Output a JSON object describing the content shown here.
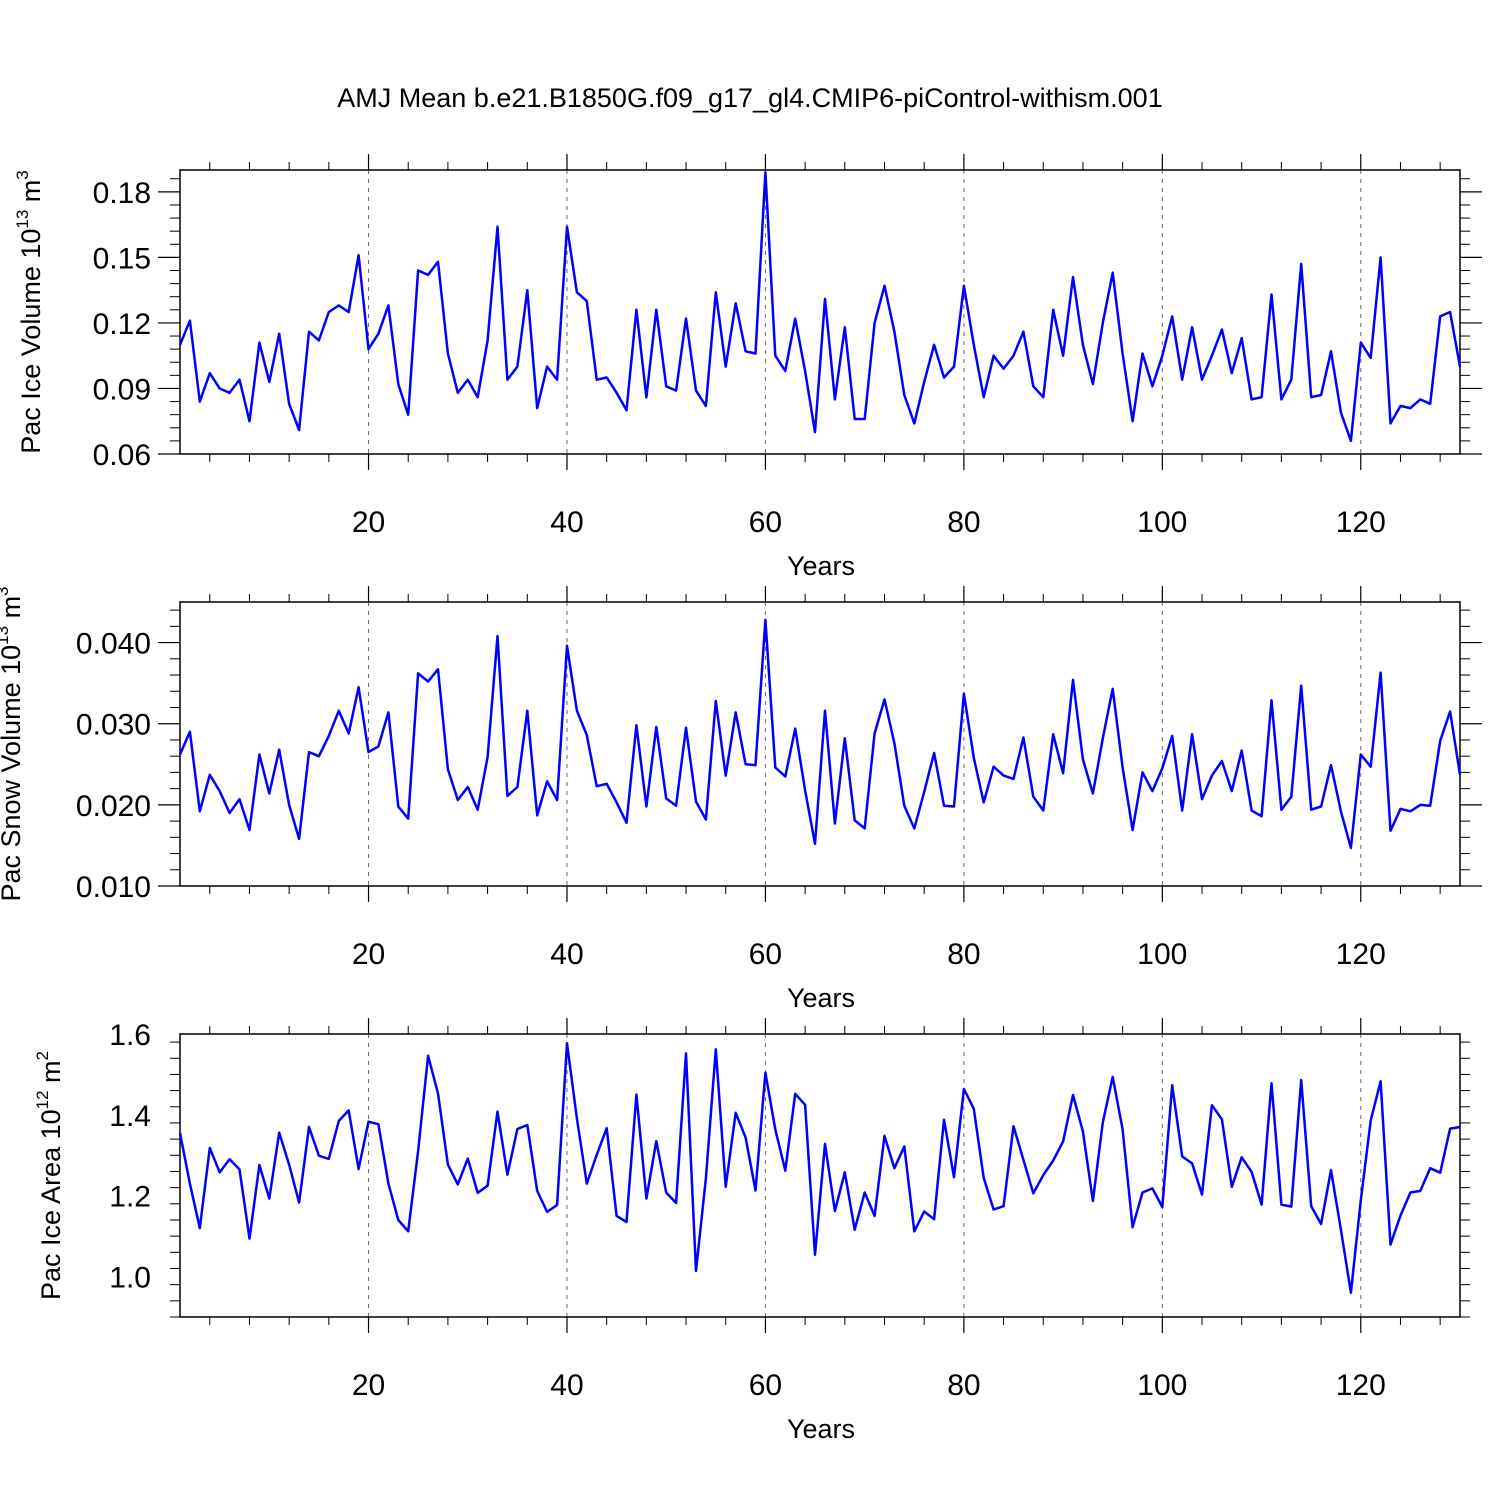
{
  "figure": {
    "title": "AMJ Mean b.e21.B1850G.f09_g17_gl4.CMIP6-piControl-withism.001",
    "line_color": "#0000ff"
  },
  "chart_data": [
    {
      "type": "line",
      "ylabel": "Pac Ice Volume 10",
      "ylabel_exp": "13",
      "ylabel_unit": " m",
      "ylabel_unit_exp": "3",
      "xlabel": "Years",
      "xlim": [
        1,
        130
      ],
      "ylim": [
        0.06,
        0.19
      ],
      "xticks": [
        20,
        40,
        60,
        80,
        100,
        120
      ],
      "yticks": [
        0.06,
        0.09,
        0.12,
        0.15,
        0.18
      ],
      "ytick_labels": [
        "0.06",
        "0.09",
        "0.12",
        "0.15",
        "0.18"
      ],
      "grid": "vertical dashed at major x ticks",
      "series": [
        {
          "values": [
            0.11,
            0.121,
            0.084,
            0.097,
            0.09,
            0.088,
            0.094,
            0.075,
            0.111,
            0.093,
            0.115,
            0.083,
            0.071,
            0.116,
            0.112,
            0.125,
            0.128,
            0.125,
            0.151,
            0.108,
            0.115,
            0.128,
            0.092,
            0.078,
            0.144,
            0.142,
            0.148,
            0.106,
            0.088,
            0.094,
            0.086,
            0.112,
            0.164,
            0.094,
            0.1,
            0.135,
            0.081,
            0.1,
            0.094,
            0.164,
            0.134,
            0.13,
            0.094,
            0.095,
            0.088,
            0.08,
            0.126,
            0.086,
            0.126,
            0.091,
            0.089,
            0.122,
            0.089,
            0.082,
            0.134,
            0.1,
            0.129,
            0.107,
            0.106,
            0.189,
            0.105,
            0.098,
            0.122,
            0.098,
            0.07,
            0.131,
            0.085,
            0.118,
            0.076,
            0.076,
            0.12,
            0.137,
            0.116,
            0.087,
            0.074,
            0.093,
            0.11,
            0.095,
            0.1,
            0.137,
            0.11,
            0.086,
            0.105,
            0.099,
            0.105,
            0.116,
            0.091,
            0.086,
            0.126,
            0.105,
            0.141,
            0.11,
            0.092,
            0.12,
            0.143,
            0.106,
            0.075,
            0.106,
            0.091,
            0.105,
            0.123,
            0.094,
            0.118,
            0.094,
            0.105,
            0.117,
            0.097,
            0.113,
            0.085,
            0.086,
            0.133,
            0.085,
            0.094,
            0.147,
            0.086,
            0.087,
            0.107,
            0.079,
            0.066,
            0.111,
            0.104,
            0.15,
            0.074,
            0.082,
            0.081,
            0.085,
            0.083,
            0.123,
            0.125,
            0.1
          ]
        }
      ]
    },
    {
      "type": "line",
      "ylabel": "Pac Snow Volume 10",
      "ylabel_exp": "13",
      "ylabel_unit": " m",
      "ylabel_unit_exp": "3",
      "xlabel": "Years",
      "xlim": [
        1,
        130
      ],
      "ylim": [
        0.01,
        0.045
      ],
      "xticks": [
        20,
        40,
        60,
        80,
        100,
        120
      ],
      "yticks": [
        0.01,
        0.02,
        0.03,
        0.04
      ],
      "ytick_labels": [
        "0.010",
        "0.020",
        "0.030",
        "0.040"
      ],
      "grid": "vertical dashed at major x ticks",
      "series": [
        {
          "values": [
            0.0262,
            0.029,
            0.0192,
            0.0237,
            0.0217,
            0.019,
            0.0207,
            0.0169,
            0.0262,
            0.0214,
            0.0268,
            0.02,
            0.0158,
            0.0265,
            0.026,
            0.0285,
            0.0316,
            0.0288,
            0.0345,
            0.0265,
            0.0272,
            0.0314,
            0.0198,
            0.0183,
            0.0362,
            0.0352,
            0.0367,
            0.0244,
            0.0206,
            0.0222,
            0.0194,
            0.0259,
            0.0408,
            0.0211,
            0.0222,
            0.0316,
            0.0187,
            0.0229,
            0.0206,
            0.0396,
            0.0316,
            0.0286,
            0.0223,
            0.0226,
            0.0203,
            0.0178,
            0.0298,
            0.0198,
            0.0296,
            0.0208,
            0.0199,
            0.0295,
            0.0204,
            0.0182,
            0.0328,
            0.0236,
            0.0314,
            0.025,
            0.0249,
            0.0428,
            0.0246,
            0.0235,
            0.0294,
            0.0218,
            0.0152,
            0.0316,
            0.0177,
            0.0282,
            0.0181,
            0.0171,
            0.0288,
            0.033,
            0.0276,
            0.0199,
            0.0171,
            0.0216,
            0.0264,
            0.0199,
            0.0198,
            0.0337,
            0.0258,
            0.0203,
            0.0247,
            0.0236,
            0.0232,
            0.0283,
            0.021,
            0.0193,
            0.0287,
            0.0239,
            0.0354,
            0.0256,
            0.0214,
            0.0282,
            0.0343,
            0.0246,
            0.0169,
            0.024,
            0.0217,
            0.0245,
            0.0285,
            0.0193,
            0.0287,
            0.0207,
            0.0236,
            0.0254,
            0.0217,
            0.0267,
            0.0193,
            0.0186,
            0.0329,
            0.0194,
            0.021,
            0.0347,
            0.0194,
            0.0198,
            0.0249,
            0.0192,
            0.0147,
            0.0262,
            0.0247,
            0.0363,
            0.0168,
            0.0195,
            0.0192,
            0.02,
            0.0199,
            0.0279,
            0.0315,
            0.0237
          ]
        }
      ]
    },
    {
      "type": "line",
      "ylabel": "Pac Ice Area 10",
      "ylabel_exp": "12",
      "ylabel_unit": " m",
      "ylabel_unit_exp": "2",
      "xlabel": "Years",
      "xlim": [
        1,
        130
      ],
      "ylim": [
        0.9,
        1.6
      ],
      "xticks": [
        20,
        40,
        60,
        80,
        100,
        120
      ],
      "yticks": [
        1.0,
        1.2,
        1.4,
        1.6
      ],
      "ytick_labels": [
        "1.0",
        "1.2",
        "1.4",
        "1.6"
      ],
      "grid": "vertical dashed at major x ticks",
      "series": [
        {
          "values": [
            1.355,
            1.23,
            1.12,
            1.318,
            1.258,
            1.29,
            1.265,
            1.094,
            1.276,
            1.193,
            1.356,
            1.277,
            1.183,
            1.37,
            1.299,
            1.291,
            1.385,
            1.411,
            1.266,
            1.383,
            1.377,
            1.23,
            1.14,
            1.112,
            1.31,
            1.546,
            1.453,
            1.277,
            1.228,
            1.292,
            1.207,
            1.225,
            1.408,
            1.252,
            1.365,
            1.375,
            1.212,
            1.16,
            1.177,
            1.577,
            1.391,
            1.23,
            1.301,
            1.367,
            1.15,
            1.135,
            1.45,
            1.193,
            1.335,
            1.208,
            1.182,
            1.552,
            1.014,
            1.243,
            1.562,
            1.222,
            1.405,
            1.344,
            1.213,
            1.504,
            1.364,
            1.262,
            1.452,
            1.425,
            1.054,
            1.328,
            1.162,
            1.258,
            1.116,
            1.208,
            1.15,
            1.348,
            1.268,
            1.322,
            1.112,
            1.161,
            1.142,
            1.388,
            1.246,
            1.464,
            1.415,
            1.244,
            1.166,
            1.174,
            1.372,
            1.289,
            1.206,
            1.251,
            1.287,
            1.334,
            1.449,
            1.359,
            1.187,
            1.381,
            1.494,
            1.364,
            1.122,
            1.208,
            1.218,
            1.172,
            1.473,
            1.297,
            1.28,
            1.203,
            1.424,
            1.389,
            1.222,
            1.295,
            1.259,
            1.178,
            1.478,
            1.178,
            1.173,
            1.486,
            1.174,
            1.13,
            1.263,
            1.116,
            0.96,
            1.189,
            1.386,
            1.483,
            1.079,
            1.151,
            1.208,
            1.212,
            1.268,
            1.257,
            1.366,
            1.37
          ]
        }
      ]
    }
  ]
}
